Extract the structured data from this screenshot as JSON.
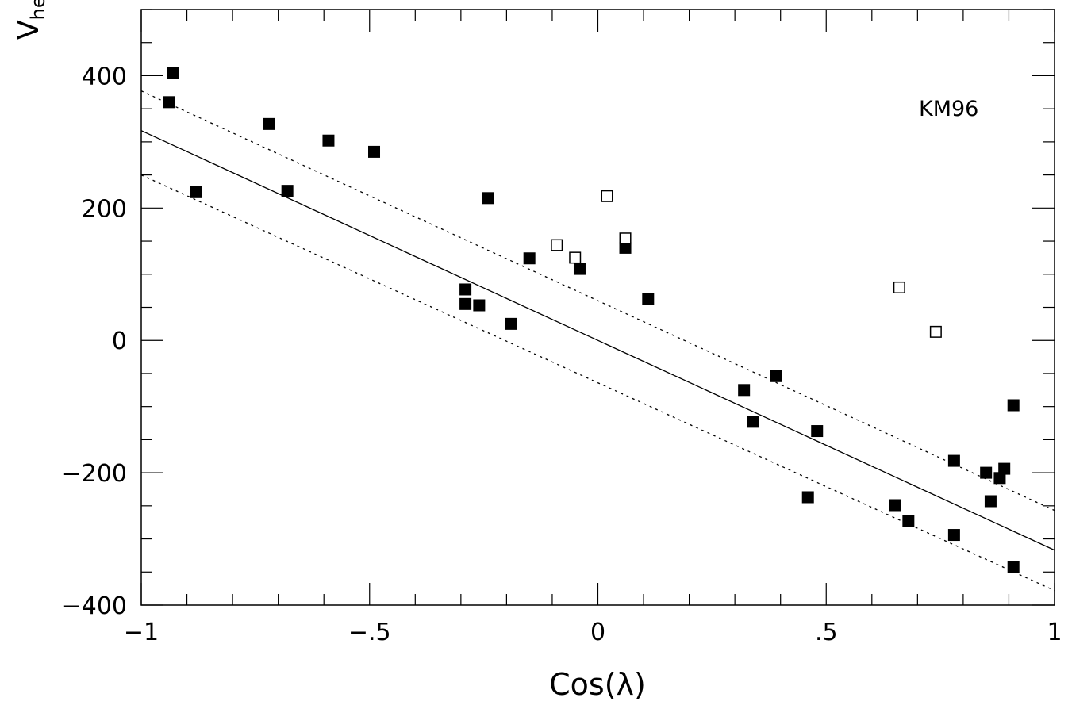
{
  "chart_data": {
    "type": "scatter",
    "title": "",
    "xlabel": "Cos(λ)",
    "ylabel_main": "V",
    "ylabel_sub": "helio",
    "annotation": "KM96",
    "xlim": [
      -1,
      1
    ],
    "ylim": [
      -400,
      500
    ],
    "x_ticks": [
      {
        "value": -1,
        "label": "−1"
      },
      {
        "value": -0.5,
        "label": "−.5"
      },
      {
        "value": 0,
        "label": "0"
      },
      {
        "value": 0.5,
        "label": ".5"
      },
      {
        "value": 1,
        "label": "1"
      }
    ],
    "y_ticks": [
      {
        "value": -400,
        "label": "−400"
      },
      {
        "value": -200,
        "label": "−200"
      },
      {
        "value": 0,
        "label": "0"
      },
      {
        "value": 200,
        "label": "200"
      },
      {
        "value": 400,
        "label": "400"
      }
    ],
    "x_minor_step": 0.1,
    "y_minor_step": 50,
    "grid": false,
    "lines": [
      {
        "style": "solid",
        "x": [
          -1,
          1
        ],
        "y": [
          317,
          -317
        ]
      },
      {
        "style": "dotted",
        "x": [
          -1,
          1
        ],
        "y": [
          377,
          -257
        ]
      },
      {
        "style": "dotted",
        "x": [
          -1,
          1
        ],
        "y": [
          250,
          -378
        ]
      }
    ],
    "series": [
      {
        "marker": "filled-square",
        "points": [
          [
            -0.93,
            404
          ],
          [
            -0.94,
            360
          ],
          [
            -0.88,
            224
          ],
          [
            -0.72,
            327
          ],
          [
            -0.68,
            226
          ],
          [
            -0.59,
            302
          ],
          [
            -0.49,
            285
          ],
          [
            -0.24,
            215
          ],
          [
            -0.29,
            77
          ],
          [
            -0.29,
            55
          ],
          [
            -0.26,
            53
          ],
          [
            -0.19,
            25
          ],
          [
            -0.15,
            124
          ],
          [
            -0.04,
            108
          ],
          [
            0.06,
            140
          ],
          [
            0.11,
            62
          ],
          [
            0.32,
            -75
          ],
          [
            0.34,
            -123
          ],
          [
            0.39,
            -54
          ],
          [
            0.46,
            -237
          ],
          [
            0.48,
            -137
          ],
          [
            0.65,
            -249
          ],
          [
            0.68,
            -273
          ],
          [
            0.78,
            -294
          ],
          [
            0.78,
            -182
          ],
          [
            0.85,
            -200
          ],
          [
            0.86,
            -243
          ],
          [
            0.88,
            -208
          ],
          [
            0.89,
            -194
          ],
          [
            0.91,
            -98
          ],
          [
            0.91,
            -343
          ]
        ]
      },
      {
        "marker": "open-square",
        "points": [
          [
            -0.09,
            144
          ],
          [
            -0.05,
            125
          ],
          [
            0.02,
            218
          ],
          [
            0.06,
            154
          ],
          [
            0.66,
            80
          ],
          [
            0.74,
            13
          ]
        ]
      }
    ]
  }
}
